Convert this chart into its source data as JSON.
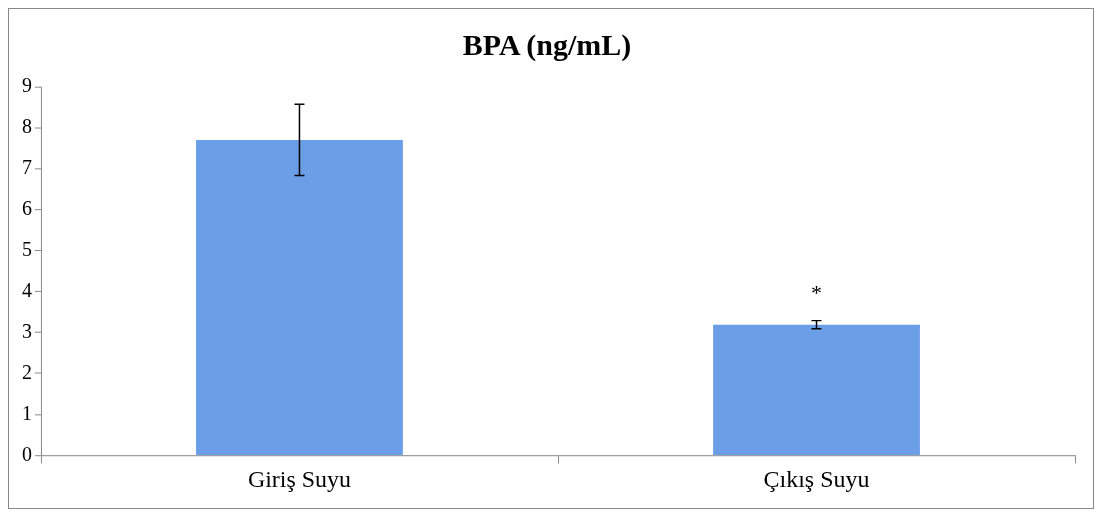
{
  "chart_data": {
    "type": "bar",
    "title": "BPA (ng/mL)",
    "categories": [
      "Giriş Suyu",
      "Çıkış Suyu"
    ],
    "values": [
      7.7,
      3.19
    ],
    "errors": [
      0.87,
      0.1
    ],
    "color": "#6a9ee6",
    "ylim": [
      0,
      9
    ],
    "yticks": [
      0,
      1,
      2,
      3,
      4,
      5,
      6,
      7,
      8,
      9
    ],
    "grid": false,
    "legend": false,
    "annotations": [
      "*"
    ]
  }
}
